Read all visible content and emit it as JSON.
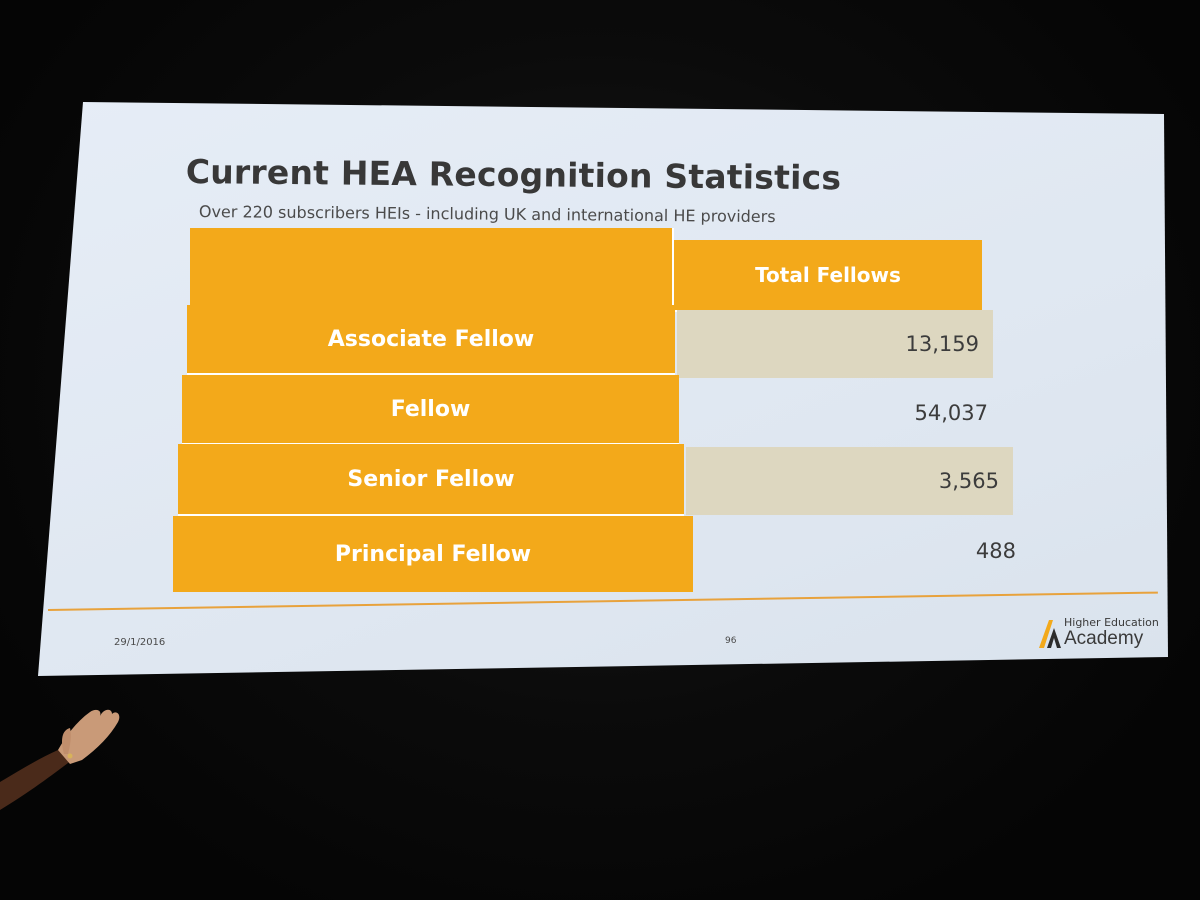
{
  "slide": {
    "title": "Current HEA Recognition Statistics",
    "subtitle": "Over 220 subscribers HEIs - including UK and international HE providers",
    "table": {
      "header": "Total Fellows",
      "rows": [
        {
          "label": "Associate Fellow",
          "value": "13,159"
        },
        {
          "label": "Fellow",
          "value": "54,037"
        },
        {
          "label": "Senior Fellow",
          "value": "3,565"
        },
        {
          "label": "Principal Fellow",
          "value": "488"
        }
      ]
    },
    "footer": {
      "date": "29/1/2016",
      "page_number": "96",
      "logo_line1": "Higher Education",
      "logo_line2": "Academy"
    }
  },
  "colors": {
    "orange": "#f3a91a",
    "shaded_cell": "#ddd7c0",
    "slide_background": "#e3eaf3",
    "room": "#070707"
  }
}
